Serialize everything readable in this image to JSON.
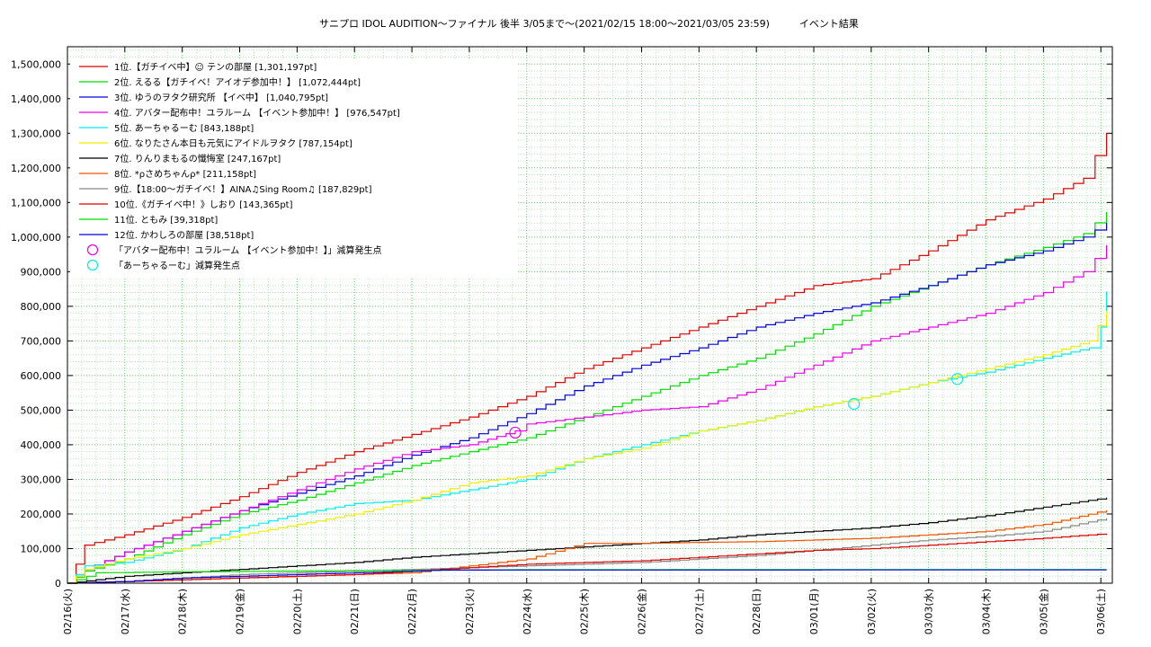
{
  "chart_data": {
    "type": "line",
    "title": "サニプロ IDOL AUDITION〜ファイナル 後半 3/05まで〜(2021/02/15 18:00〜2021/03/05 23:59)　　　イベント結果",
    "xlabel": "",
    "ylabel": "",
    "ylim": [
      0,
      1550000
    ],
    "grid": true,
    "legend_position": "top-left",
    "yticks": [
      0,
      100000,
      200000,
      300000,
      400000,
      500000,
      600000,
      700000,
      800000,
      900000,
      1000000,
      1100000,
      1200000,
      1300000,
      1400000,
      1500000
    ],
    "ytick_labels": [
      "0",
      "100,000",
      "200,000",
      "300,000",
      "400,000",
      "500,000",
      "600,000",
      "700,000",
      "800,000",
      "900,000",
      "1,000,000",
      "1,100,000",
      "1,200,000",
      "1,300,000",
      "1,400,000",
      "1,500,000"
    ],
    "x_range": [
      0,
      18.2
    ],
    "xticks": [
      0,
      1,
      2,
      3,
      4,
      5,
      6,
      7,
      8,
      9,
      10,
      11,
      12,
      13,
      14,
      15,
      16,
      17,
      18
    ],
    "xtick_labels": [
      "02/16(火)",
      "02/17(水)",
      "02/18(木)",
      "02/19(金)",
      "02/20(土)",
      "02/21(日)",
      "02/22(月)",
      "02/23(火)",
      "02/24(水)",
      "02/25(木)",
      "02/26(金)",
      "02/27(土)",
      "02/28(日)",
      "03/01(月)",
      "03/02(火)",
      "03/03(水)",
      "03/04(木)",
      "03/05(金)",
      "03/06(土)"
    ],
    "series": [
      {
        "name": "1位.【ガチイベ中】☺ テンの部屋 [1,301,197pt]",
        "color": "#e00000",
        "x": [
          0,
          0.3,
          1,
          2,
          3,
          4,
          5,
          6,
          7,
          8,
          9,
          10,
          11,
          12,
          13,
          14,
          15,
          16,
          17,
          17.7,
          18.1
        ],
        "y": [
          0,
          110000,
          140000,
          190000,
          250000,
          320000,
          380000,
          430000,
          480000,
          540000,
          620000,
          680000,
          740000,
          800000,
          860000,
          880000,
          960000,
          1050000,
          1110000,
          1170000,
          1301197
        ]
      },
      {
        "name": "2位. えるる【ガチイベ！アイオデ参加中！】 [1,072,444pt]",
        "color": "#00dd00",
        "x": [
          0,
          0.3,
          1,
          2,
          3,
          4,
          5,
          6,
          7,
          8,
          9,
          10,
          11,
          12,
          13,
          14,
          15,
          16,
          17,
          17.7,
          18.1
        ],
        "y": [
          0,
          35000,
          70000,
          140000,
          200000,
          240000,
          290000,
          340000,
          380000,
          420000,
          480000,
          540000,
          600000,
          650000,
          720000,
          800000,
          860000,
          920000,
          970000,
          1010000,
          1072444
        ]
      },
      {
        "name": "3位. ゆうのヲタク研究所 【イベ中】 [1,040,795pt]",
        "color": "#0000dd",
        "x": [
          0,
          0.3,
          1,
          2,
          3,
          4,
          5,
          6,
          7,
          8,
          9,
          10,
          11,
          12,
          13,
          14,
          15,
          16,
          17,
          17.7,
          18.1
        ],
        "y": [
          0,
          40000,
          90000,
          150000,
          210000,
          260000,
          310000,
          370000,
          420000,
          490000,
          570000,
          630000,
          680000,
          740000,
          780000,
          810000,
          860000,
          920000,
          960000,
          1000000,
          1040795
        ]
      },
      {
        "name": "4位. アバター配布中！ユラルーム 【イベント参加中！】 [976,547pt]",
        "color": "#ee00ee",
        "x": [
          0,
          0.3,
          1,
          2,
          3,
          4,
          5,
          6,
          7,
          7.8,
          8,
          9,
          10,
          11,
          12,
          13,
          14,
          15,
          16,
          17,
          17.7,
          18.1
        ],
        "y": [
          0,
          40000,
          90000,
          150000,
          210000,
          270000,
          330000,
          380000,
          400000,
          440000,
          460000,
          480000,
          500000,
          510000,
          560000,
          630000,
          700000,
          740000,
          780000,
          840000,
          900000,
          976547
        ]
      },
      {
        "name": "5位. あーちゃるーむ [843,188pt]",
        "color": "#00eeee",
        "x": [
          0,
          0.3,
          1,
          2,
          3,
          4,
          5,
          6,
          7,
          8,
          9,
          10,
          11,
          12,
          13,
          14,
          15,
          16,
          17,
          17.8,
          18.0,
          18.1
        ],
        "y": [
          0,
          50000,
          60000,
          100000,
          160000,
          200000,
          230000,
          240000,
          270000,
          300000,
          360000,
          400000,
          440000,
          470000,
          510000,
          540000,
          580000,
          610000,
          650000,
          680000,
          740000,
          843188
        ]
      },
      {
        "name": "6位. なりたさん本日も元気にアイドルヲタク [787,154pt]",
        "color": "#eeee00",
        "x": [
          0,
          0.3,
          1,
          2,
          3,
          4,
          5,
          6,
          7,
          8,
          9,
          10,
          11,
          12,
          13,
          14,
          15,
          16,
          17,
          17.8,
          18.1
        ],
        "y": [
          0,
          40000,
          70000,
          100000,
          140000,
          170000,
          200000,
          240000,
          290000,
          310000,
          360000,
          390000,
          440000,
          470000,
          510000,
          540000,
          580000,
          620000,
          660000,
          700000,
          787154
        ]
      },
      {
        "name": "7位. りんりまもるの懺悔室 [247,167pt]",
        "color": "#000000",
        "x": [
          0,
          1,
          2,
          3,
          4,
          5,
          6,
          7,
          8,
          9,
          10,
          11,
          12,
          13,
          14,
          15,
          16,
          17,
          18.1
        ],
        "y": [
          0,
          20000,
          30000,
          40000,
          50000,
          60000,
          75000,
          85000,
          95000,
          105000,
          115000,
          125000,
          140000,
          150000,
          160000,
          175000,
          195000,
          220000,
          247167
        ]
      },
      {
        "name": "8位. *ρさめちゃんρ* [211,158pt]",
        "color": "#ee5500",
        "x": [
          0,
          1,
          2,
          3,
          4,
          5,
          6,
          7,
          8,
          9,
          10,
          11,
          12,
          13,
          14,
          15,
          16,
          17,
          18.1
        ],
        "y": [
          0,
          5000,
          10000,
          15000,
          20000,
          25000,
          30000,
          50000,
          70000,
          115000,
          115000,
          118000,
          120000,
          125000,
          130000,
          140000,
          150000,
          170000,
          211158
        ]
      },
      {
        "name": "9位.【18:00〜ガチイベ！】AINA♫Sing Room♫ [187,829pt]",
        "color": "#888888",
        "x": [
          0,
          1,
          2,
          3,
          4,
          5,
          6,
          7,
          8,
          9,
          10,
          11,
          12,
          13,
          14,
          15,
          16,
          17,
          18.1
        ],
        "y": [
          0,
          5000,
          15000,
          25000,
          30000,
          35000,
          40000,
          45000,
          50000,
          55000,
          60000,
          70000,
          80000,
          95000,
          110000,
          125000,
          135000,
          150000,
          187829
        ]
      },
      {
        "name": "10位.《ガチイベ中！》しおり [143,365pt]",
        "color": "#e00000",
        "x": [
          0,
          1,
          2,
          3,
          4,
          5,
          6,
          7,
          8,
          9,
          10,
          11,
          12,
          13,
          14,
          15,
          16,
          17,
          18.1
        ],
        "y": [
          0,
          5000,
          10000,
          15000,
          20000,
          25000,
          35000,
          45000,
          55000,
          60000,
          65000,
          75000,
          85000,
          95000,
          100000,
          110000,
          120000,
          130000,
          143365
        ]
      },
      {
        "name": "11位. ともみ [39,318pt]",
        "color": "#00dd00",
        "x": [
          0,
          0.5,
          1,
          2,
          3,
          4,
          5,
          6,
          7,
          8,
          18.1
        ],
        "y": [
          0,
          30000,
          31000,
          33000,
          34000,
          35000,
          36000,
          37000,
          38000,
          39000,
          39318
        ]
      },
      {
        "name": "12位. かわしろの部屋 [38,518pt]",
        "color": "#0000dd",
        "x": [
          0,
          1,
          2,
          3,
          4,
          5,
          6,
          6.5,
          18.1
        ],
        "y": [
          0,
          5000,
          15000,
          20000,
          25000,
          30000,
          35000,
          38000,
          38518
        ]
      }
    ],
    "annotations": [
      {
        "label": "「アバター配布中！ユラルーム 【イベント参加中！】」減算発生点",
        "color": "#ee00ee",
        "x": [
          7.8
        ],
        "y": [
          435000
        ]
      },
      {
        "label": "「あーちゃるーむ」減算発生点",
        "color": "#00eeee",
        "x": [
          13.7,
          15.5
        ],
        "y": [
          518000,
          590000
        ]
      }
    ]
  }
}
